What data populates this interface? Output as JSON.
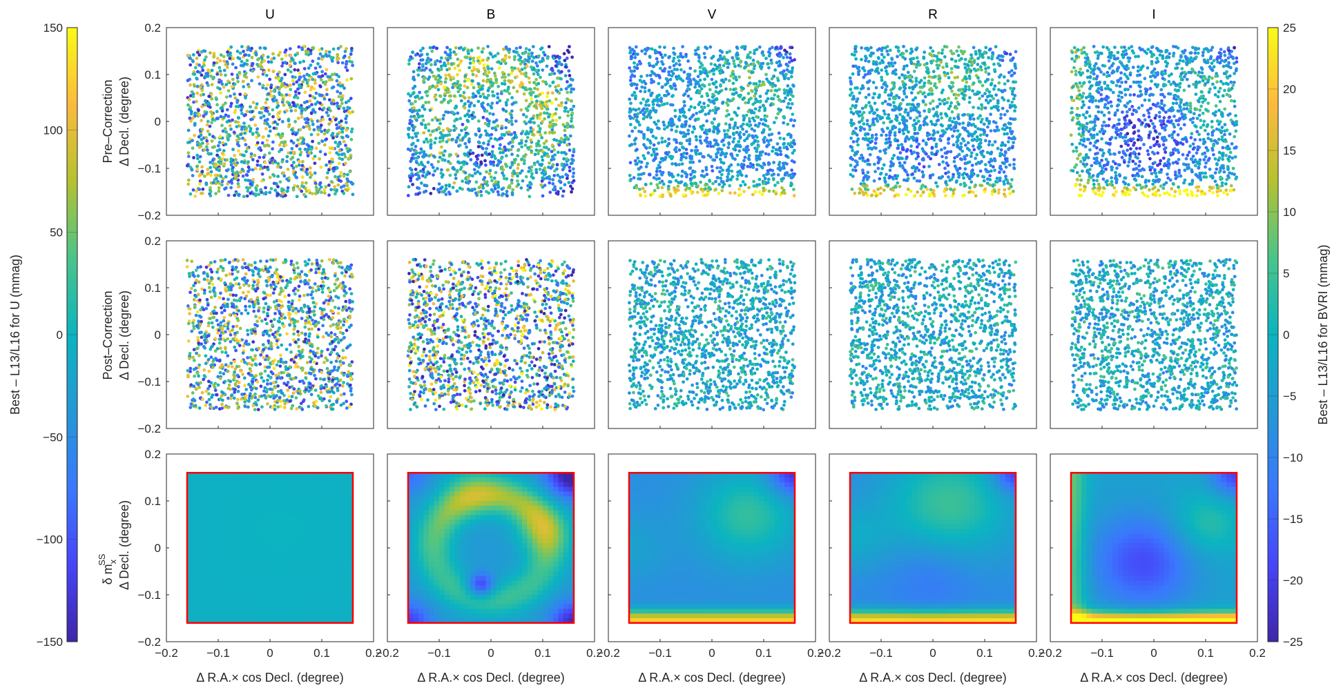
{
  "figure": {
    "column_titles": [
      "U",
      "B",
      "V",
      "R",
      "I"
    ],
    "row_ylabels": [
      [
        "Pre–Correction",
        "Δ Decl. (degree)"
      ],
      [
        "Post–Correction",
        "Δ Decl. (degree)"
      ],
      [
        "δ m",
        "Δ Decl. (degree)"
      ]
    ],
    "row3_symbol": {
      "base": "δ m",
      "sup": "SS",
      "sub": "x"
    },
    "xlabel": "Δ R.A.× cos Decl.  (degree)",
    "x_ticks": [
      "−0.2",
      "−0.1",
      "0",
      "0.1",
      "0.2"
    ],
    "y_ticks": [
      "0.2",
      "0.1",
      "0",
      "−0.1",
      "−0.2"
    ]
  },
  "colorbars": {
    "left": {
      "label": "Best – L13/L16 for U (mmag)",
      "ticks": [
        "150",
        "100",
        "50",
        "0",
        "−50",
        "−100",
        "−150"
      ],
      "range": [
        -150,
        150
      ]
    },
    "right": {
      "label": "Best – L13/L16 for BVRI (mmag)",
      "ticks": [
        "25",
        "20",
        "15",
        "10",
        "5",
        "0",
        "−5",
        "−10",
        "−15",
        "−20",
        "−25"
      ],
      "range": [
        -25,
        25
      ]
    },
    "colormap": "parula"
  },
  "chart_data": {
    "type": "scatter",
    "layout": "3 rows x 5 columns small multiples",
    "rows": [
      "Pre-Correction residuals",
      "Post-Correction residuals",
      "Star-flat correction map (heatmap)"
    ],
    "columns": [
      "U",
      "B",
      "V",
      "R",
      "I"
    ],
    "xlim": [
      -0.2,
      0.2
    ],
    "ylim": [
      -0.2,
      0.2
    ],
    "data_extent": [
      -0.16,
      0.16
    ],
    "points_per_panel": 1400,
    "heatmap_grid": 32,
    "heatmap_border_color": "#ff0000",
    "panels": {
      "U": {
        "pre": "random scatter, full U range (+/-150 mmag)",
        "post": "random scatter, full U range",
        "map_range": [
          -20,
          10
        ]
      },
      "B": {
        "pre": "blue upper-right and lower-right corners, yellow left/top",
        "post": "random",
        "map": "yellow ring near top/right, blue corners, dark minimum near (-0.02,-0.08)"
      },
      "V": {
        "pre": "yellow band at bottom, blue top-right corner",
        "post": "near zero",
        "map": "yellow bottom band, green right arc, blue center-left"
      },
      "R": {
        "pre": "yellow bottom band, blue top-right",
        "post": "near zero",
        "map": "yellow bottom band, green top, blue center"
      },
      "I": {
        "pre": "yellow bottom band, yellow left edge, blue top-right",
        "post": "near zero",
        "map": "bright yellow bottom band, blue central minimum near (-0.02,-0.03)"
      }
    }
  }
}
